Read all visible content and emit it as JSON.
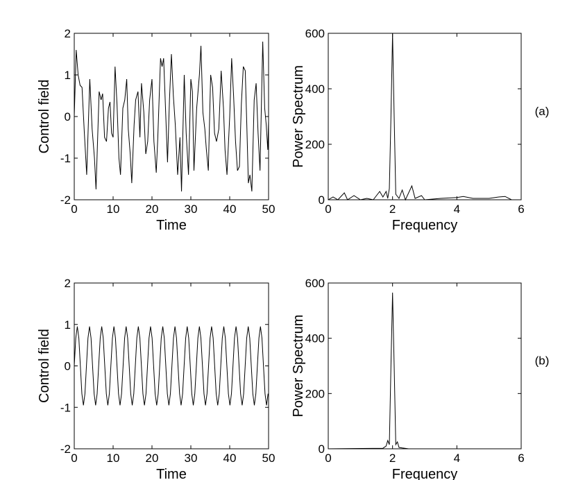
{
  "chart_data": [
    {
      "type": "line",
      "xlabel": "Time",
      "ylabel": "Control field",
      "xlim": [
        0,
        50
      ],
      "ylim": [
        -2,
        2
      ],
      "xticks": [
        0,
        10,
        20,
        30,
        40,
        50
      ],
      "yticks": [
        -2,
        -1,
        0,
        1,
        2
      ],
      "series": [
        {
          "color": "#000000",
          "x": [
            0,
            0.5,
            1.0,
            1.5,
            2.0,
            2.6,
            3.2,
            4.0,
            4.6,
            5.2,
            5.6,
            6.4,
            6.9,
            7.3,
            7.8,
            8.3,
            8.8,
            9.2,
            9.6,
            10.0,
            10.5,
            11.0,
            11.5,
            11.9,
            12.5,
            13.0,
            13.5,
            13.9,
            14.4,
            14.8,
            15.4,
            15.8,
            16.4,
            16.9,
            17.3,
            17.9,
            18.4,
            18.9,
            19.4,
            20.0,
            20.5,
            21.1,
            21.5,
            22.2,
            22.6,
            23.0,
            23.6,
            24.0,
            24.5,
            25.0,
            25.5,
            26.0,
            26.6,
            27.2,
            27.6,
            28.3,
            28.8,
            29.4,
            30.0,
            30.4,
            30.8,
            31.5,
            32.2,
            32.6,
            33.1,
            33.6,
            34.0,
            34.5,
            35.1,
            35.6,
            36.1,
            36.6,
            37.2,
            37.8,
            38.4,
            38.8,
            39.3,
            40.0,
            40.5,
            41.0,
            41.5,
            42.0,
            42.5,
            43.0,
            43.5,
            44.0,
            44.4,
            44.8,
            45.2,
            45.7,
            46.3,
            46.8,
            47.3,
            47.8,
            48.5,
            49.0,
            49.4,
            49.8,
            50
          ],
          "values": [
            0,
            1.6,
            1.0,
            0.75,
            0.7,
            -0.4,
            -1.4,
            0.9,
            -0.3,
            -1.0,
            -1.75,
            0.6,
            0.4,
            0.55,
            -0.5,
            -0.6,
            0.2,
            0.35,
            -0.4,
            -0.5,
            1.2,
            0.3,
            -1.0,
            -1.4,
            0.2,
            0.4,
            0.9,
            -0.3,
            -0.9,
            -1.6,
            -0.2,
            0.4,
            0.6,
            -0.5,
            0.8,
            0.1,
            -0.9,
            -0.6,
            0.4,
            0.9,
            -0.6,
            -1.35,
            -0.5,
            1.4,
            1.2,
            1.4,
            -0.1,
            -1.1,
            0.4,
            1.5,
            0.5,
            -0.2,
            -1.4,
            -0.5,
            -1.8,
            1.0,
            -0.4,
            -1.4,
            0.9,
            0.6,
            -1.3,
            0.2,
            1.0,
            1.7,
            0.1,
            -0.3,
            -0.8,
            -1.3,
            1.0,
            0.7,
            -0.4,
            -0.6,
            -0.3,
            1.1,
            0.2,
            -0.8,
            -1.4,
            0.0,
            1.4,
            0.5,
            -0.6,
            -1.3,
            -1.2,
            0.3,
            1.2,
            1.1,
            -0.2,
            -1.6,
            -1.4,
            -1.8,
            0.4,
            0.8,
            -0.4,
            -1.3,
            1.8,
            0.2,
            -0.2,
            -0.8,
            -0.1
          ]
        }
      ]
    },
    {
      "type": "line",
      "xlabel": "Frequency",
      "ylabel": "Power Spectrum",
      "annotation": "(a)",
      "xlim": [
        0,
        6
      ],
      "ylim": [
        0,
        600
      ],
      "xticks": [
        0,
        2,
        4,
        6
      ],
      "yticks": [
        0,
        200,
        400,
        600
      ],
      "series": [
        {
          "color": "#000000",
          "x": [
            0,
            0.15,
            0.3,
            0.5,
            0.6,
            0.8,
            1.0,
            1.2,
            1.4,
            1.6,
            1.7,
            1.8,
            1.85,
            1.9,
            1.95,
            2.0,
            2.05,
            2.1,
            2.2,
            2.3,
            2.4,
            2.6,
            2.7,
            2.9,
            3.0,
            3.5,
            4.0,
            4.2,
            4.5,
            5.0,
            5.3,
            5.5,
            5.7,
            6.0
          ],
          "values": [
            0,
            10,
            0,
            25,
            0,
            15,
            0,
            5,
            0,
            30,
            10,
            30,
            5,
            40,
            300,
            600,
            300,
            20,
            5,
            35,
            0,
            50,
            5,
            15,
            0,
            5,
            8,
            12,
            5,
            5,
            10,
            12,
            0,
            0
          ]
        }
      ]
    },
    {
      "type": "line",
      "xlabel": "Time",
      "ylabel": "Control field",
      "xlim": [
        0,
        50
      ],
      "ylim": [
        -2,
        2
      ],
      "xticks": [
        0,
        10,
        20,
        30,
        40,
        50
      ],
      "yticks": [
        -2,
        -1,
        0,
        1,
        2
      ],
      "series": [
        {
          "color": "#000000",
          "x": [
            0,
            0.39,
            0.79,
            1.18,
            1.57,
            1.96,
            2.36,
            2.75,
            3.14,
            3.53,
            3.93,
            4.32,
            4.71,
            5.11,
            5.5,
            5.89,
            6.28,
            6.68,
            7.07,
            7.46,
            7.85,
            8.25,
            8.64,
            9.03,
            9.42,
            9.82,
            10.21,
            10.6,
            11.0,
            11.39,
            11.78,
            12.17,
            12.57,
            12.96,
            13.35,
            13.74,
            14.14,
            14.53,
            14.92,
            15.32,
            15.71,
            16.1,
            16.49,
            16.89,
            17.28,
            17.67,
            18.06,
            18.46,
            18.85,
            19.24,
            19.63,
            20.03,
            20.42,
            20.81,
            21.21,
            21.6,
            21.99,
            22.38,
            22.78,
            23.17,
            23.56,
            23.95,
            24.35,
            24.74,
            25.13,
            25.53,
            25.92,
            26.31,
            26.7,
            27.1,
            27.49,
            27.88,
            28.27,
            28.67,
            29.06,
            29.45,
            29.85,
            30.24,
            30.63,
            31.02,
            31.42,
            31.81,
            32.2,
            32.59,
            32.99,
            33.38,
            33.77,
            34.16,
            34.56,
            34.95,
            35.34,
            35.74,
            36.13,
            36.52,
            36.91,
            37.31,
            37.7,
            38.09,
            38.48,
            38.88,
            39.27,
            39.66,
            40.06,
            40.45,
            40.84,
            41.23,
            41.63,
            42.02,
            42.41,
            42.8,
            43.2,
            43.59,
            43.98,
            44.37,
            44.77,
            45.16,
            45.55,
            45.95,
            46.34,
            46.73,
            47.12,
            47.52,
            47.91,
            48.3,
            48.69,
            49.09,
            49.48,
            49.87
          ],
          "values": [
            0,
            0.67,
            0.95,
            0.67,
            0,
            -0.67,
            -0.95,
            -0.67,
            0,
            0.67,
            0.95,
            0.67,
            0,
            -0.67,
            -0.95,
            -0.67,
            0,
            0.67,
            0.95,
            0.67,
            0,
            -0.67,
            -0.95,
            -0.67,
            0,
            0.67,
            0.95,
            0.67,
            0,
            -0.67,
            -0.95,
            -0.67,
            0,
            0.67,
            0.95,
            0.67,
            0,
            -0.67,
            -0.95,
            -0.67,
            0,
            0.67,
            0.95,
            0.67,
            0,
            -0.67,
            -0.95,
            -0.67,
            0,
            0.67,
            0.95,
            0.67,
            0,
            -0.67,
            -0.95,
            -0.67,
            0,
            0.67,
            0.95,
            0.67,
            0,
            -0.67,
            -0.95,
            -0.67,
            0,
            0.67,
            0.95,
            0.67,
            0,
            -0.67,
            -0.95,
            -0.67,
            0,
            0.67,
            0.95,
            0.67,
            0,
            -0.67,
            -0.95,
            -0.67,
            0,
            0.67,
            0.95,
            0.67,
            0,
            -0.67,
            -0.95,
            -0.67,
            0,
            0.67,
            0.95,
            0.67,
            0,
            -0.67,
            -0.95,
            -0.67,
            0,
            0.67,
            0.95,
            0.67,
            0,
            -0.67,
            -0.95,
            -0.67,
            0,
            0.67,
            0.95,
            0.67,
            0,
            -0.67,
            -0.95,
            -0.67,
            0,
            0.67,
            0.95,
            0.67,
            0,
            -0.67,
            -0.95,
            -0.67,
            0,
            0.67,
            0.95,
            0.67,
            0,
            -0.67,
            -0.95,
            -0.67
          ]
        }
      ]
    },
    {
      "type": "line",
      "xlabel": "Frequency",
      "ylabel": "Power Spectrum",
      "annotation": "(b)",
      "xlim": [
        0,
        6
      ],
      "ylim": [
        0,
        600
      ],
      "xticks": [
        0,
        2,
        4,
        6
      ],
      "yticks": [
        0,
        200,
        400,
        600
      ],
      "series": [
        {
          "color": "#000000",
          "x": [
            0,
            1.7,
            1.8,
            1.85,
            1.9,
            1.95,
            2.0,
            2.05,
            2.1,
            2.15,
            2.2,
            2.3,
            2.5,
            6.0
          ],
          "values": [
            0,
            2,
            10,
            30,
            15,
            300,
            565,
            300,
            15,
            25,
            5,
            3,
            0,
            0
          ]
        }
      ]
    }
  ]
}
